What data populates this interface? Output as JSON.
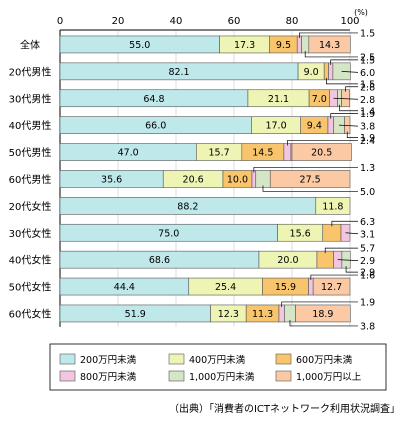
{
  "chart_data": {
    "type": "bar",
    "orientation": "horizontal",
    "stacked": true,
    "unit_label": "(%)",
    "xlim": [
      0,
      100
    ],
    "x_ticks": [
      "0",
      "20",
      "40",
      "60",
      "80",
      "100"
    ],
    "categories": [
      "全体",
      "20代男性",
      "30代男性",
      "40代男性",
      "50代男性",
      "60代男性",
      "20代女性",
      "30代女性",
      "40代女性",
      "50代女性",
      "60代女性"
    ],
    "series": [
      {
        "name": "200万円未満",
        "color": "#bfe8ea",
        "values": [
          55.0,
          82.1,
          64.8,
          66.0,
          47.0,
          35.6,
          88.2,
          75.0,
          68.6,
          44.4,
          51.9
        ]
      },
      {
        "name": "400万円未満",
        "color": "#eef4b4",
        "values": [
          17.3,
          9.0,
          21.1,
          17.0,
          15.7,
          20.6,
          11.8,
          15.6,
          20.0,
          25.4,
          12.3
        ]
      },
      {
        "name": "600万円未満",
        "color": "#f8c56c",
        "values": [
          9.5,
          1.5,
          7.0,
          9.4,
          14.5,
          10.0,
          0,
          6.3,
          5.7,
          15.9,
          11.3
        ]
      },
      {
        "name": "800万円未満",
        "color": "#f2c6e0",
        "values": [
          1.5,
          1.5,
          2.8,
          1.9,
          2.4,
          1.3,
          0,
          3.1,
          2.9,
          1.6,
          1.9
        ]
      },
      {
        "name": "1,000万円未満",
        "color": "#d4e6c6",
        "values": [
          2.5,
          6.0,
          1.4,
          3.8,
          0.4,
          5.0,
          0,
          0,
          2.9,
          0,
          3.8
        ]
      },
      {
        "name": "1,000万円以上",
        "color": "#fbc9a4",
        "values": [
          14.3,
          0,
          2.8,
          1.9,
          20.5,
          27.5,
          0,
          0,
          0,
          12.7,
          18.9
        ]
      }
    ],
    "value_labels": [
      [
        "55.0",
        "17.3",
        "9.5",
        "",
        "",
        "14.3"
      ],
      [
        "82.1",
        "9.0",
        "",
        "",
        "",
        ""
      ],
      [
        "64.8",
        "21.1",
        "7.0",
        "",
        "",
        ""
      ],
      [
        "66.0",
        "17.0",
        "9.4",
        "",
        "",
        ""
      ],
      [
        "47.0",
        "15.7",
        "14.5",
        "",
        "",
        "20.5"
      ],
      [
        "35.6",
        "20.6",
        "10.0",
        "",
        "",
        "27.5"
      ],
      [
        "88.2",
        "11.8",
        "",
        "",
        "",
        ""
      ],
      [
        "75.0",
        "15.6",
        "",
        "",
        "",
        ""
      ],
      [
        "68.6",
        "20.0",
        "",
        "",
        "",
        ""
      ],
      [
        "44.4",
        "25.4",
        "15.9",
        "",
        "",
        "12.7"
      ],
      [
        "51.9",
        "12.3",
        "11.3",
        "",
        "",
        "18.9"
      ]
    ],
    "callouts": [
      {
        "row": 0,
        "side": "above",
        "text": "1.5",
        "series": 3
      },
      {
        "row": 0,
        "side": "below",
        "text": "2.5",
        "series": 4
      },
      {
        "row": 1,
        "side": "above",
        "text": "1.5",
        "series": 3
      },
      {
        "row": 1,
        "side": "mid",
        "text": "6.0",
        "series": 4
      },
      {
        "row": 1,
        "side": "below",
        "text": "1.5",
        "series": 2
      },
      {
        "row": 2,
        "side": "above",
        "text": "2.8",
        "series": 5
      },
      {
        "row": 2,
        "side": "mid",
        "text": "2.8",
        "series": 3
      },
      {
        "row": 2,
        "side": "below",
        "text": "1.4",
        "series": 4
      },
      {
        "row": 3,
        "side": "above",
        "text": "1.9",
        "series": 3
      },
      {
        "row": 3,
        "side": "mid",
        "text": "3.8",
        "series": 4
      },
      {
        "row": 3,
        "side": "below",
        "text": "1.9",
        "series": 5
      },
      {
        "row": 4,
        "side": "above",
        "text": "2.4",
        "series": 3
      },
      {
        "row": 5,
        "side": "above",
        "text": "1.3",
        "series": 3
      },
      {
        "row": 5,
        "side": "below",
        "text": "5.0",
        "series": 4
      },
      {
        "row": 7,
        "side": "above",
        "text": "6.3",
        "series": 2
      },
      {
        "row": 7,
        "side": "mid",
        "text": "3.1",
        "series": 3
      },
      {
        "row": 8,
        "side": "above",
        "text": "5.7",
        "series": 2
      },
      {
        "row": 8,
        "side": "mid",
        "text": "2.9",
        "series": 3
      },
      {
        "row": 8,
        "side": "below",
        "text": "2.9",
        "series": 4
      },
      {
        "row": 9,
        "side": "above",
        "text": "1.6",
        "series": 3
      },
      {
        "row": 10,
        "side": "above",
        "text": "1.9",
        "series": 3
      },
      {
        "row": 10,
        "side": "below",
        "text": "3.8",
        "series": 4
      }
    ]
  },
  "source": "（出典）「消費者のICTネットワーク利用状況調査」"
}
